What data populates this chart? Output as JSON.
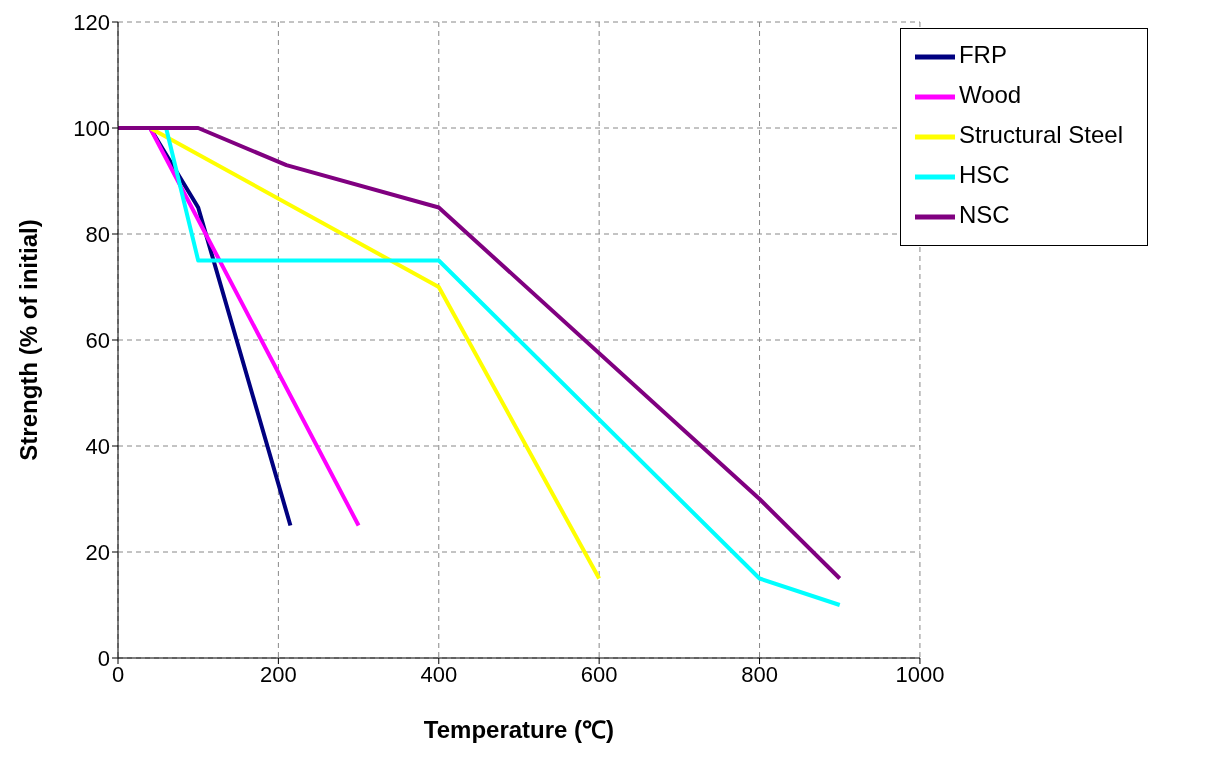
{
  "chart_data": {
    "type": "line",
    "xlabel": "Temperature (℃)",
    "ylabel": "Strength (% of initial)",
    "xlim": [
      0,
      1000
    ],
    "xticks": [
      0,
      200,
      400,
      600,
      800,
      1000
    ],
    "ylim": [
      0,
      120
    ],
    "yticks": [
      0,
      20,
      40,
      60,
      80,
      100,
      120
    ],
    "grid": true,
    "legend": "top right",
    "marker": "none",
    "line_style": "solid",
    "series": [
      {
        "name": "FRP",
        "color": "#000080",
        "x": [
          0,
          40,
          100,
          215
        ],
        "values": [
          100,
          100,
          85,
          25
        ]
      },
      {
        "name": "Wood",
        "color": "#ff00ff",
        "x": [
          0,
          40,
          300
        ],
        "values": [
          100,
          100,
          25
        ]
      },
      {
        "name": "Structural Steel",
        "color": "#ffff00",
        "x": [
          0,
          40,
          400,
          600
        ],
        "values": [
          100,
          100,
          70,
          15
        ]
      },
      {
        "name": "HSC",
        "color": "#00ffff",
        "x": [
          0,
          60,
          100,
          400,
          800,
          900
        ],
        "values": [
          100,
          100,
          75,
          75,
          15,
          10
        ]
      },
      {
        "name": "NSC",
        "color": "#800080",
        "x": [
          0,
          100,
          210,
          400,
          800,
          900
        ],
        "values": [
          100,
          100,
          93,
          85,
          30,
          15
        ]
      }
    ]
  }
}
